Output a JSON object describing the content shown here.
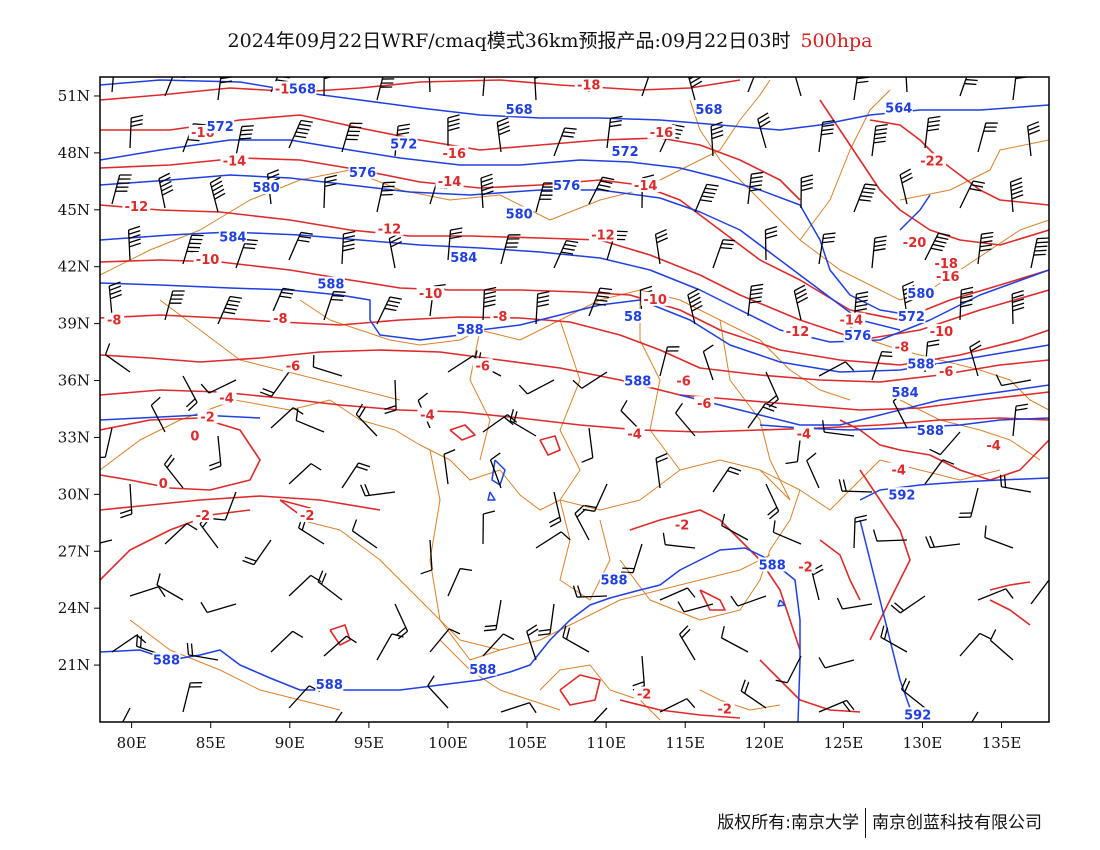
{
  "title": {
    "main": "2024年09月22日WRF/cmaq模式36km预报产品:09月22日03时",
    "level": "500hpa"
  },
  "colors": {
    "height_contour": "#1f3fe0",
    "temperature_contour": "#dd2a2a",
    "border": "#d9822b",
    "wind_barb": "#000000"
  },
  "axes": {
    "lon_ticks": [
      "80E",
      "85E",
      "90E",
      "95E",
      "100E",
      "105E",
      "110E",
      "115E",
      "120E",
      "125E",
      "130E",
      "135E"
    ],
    "lat_ticks": [
      "51N",
      "48N",
      "45N",
      "42N",
      "39N",
      "36N",
      "33N",
      "30N",
      "27N",
      "24N",
      "21N"
    ]
  },
  "chart_data": {
    "type": "contour-map",
    "xlim": [
      78,
      138
    ],
    "ylim": [
      18,
      52
    ],
    "height_labels": [
      {
        "text": "568",
        "lon": 90.8,
        "lat": 51.3
      },
      {
        "text": "568",
        "lon": 104.5,
        "lat": 50.2
      },
      {
        "text": "568",
        "lon": 116.5,
        "lat": 50.2
      },
      {
        "text": "564",
        "lon": 128.5,
        "lat": 50.3
      },
      {
        "text": "572",
        "lon": 85.6,
        "lat": 49.3
      },
      {
        "text": "572",
        "lon": 97.2,
        "lat": 48.4
      },
      {
        "text": "572",
        "lon": 111.2,
        "lat": 48.0
      },
      {
        "text": "576",
        "lon": 94.6,
        "lat": 46.9
      },
      {
        "text": "576",
        "lon": 107.5,
        "lat": 46.2
      },
      {
        "text": "580",
        "lon": 88.5,
        "lat": 46.1
      },
      {
        "text": "580",
        "lon": 104.5,
        "lat": 44.7
      },
      {
        "text": "584",
        "lon": 86.4,
        "lat": 43.5
      },
      {
        "text": "584",
        "lon": 101.0,
        "lat": 42.4
      },
      {
        "text": "588",
        "lon": 92.6,
        "lat": 41.0
      },
      {
        "text": "588",
        "lon": 101.4,
        "lat": 38.6
      },
      {
        "text": "58",
        "lon": 111.7,
        "lat": 39.3
      },
      {
        "text": "588",
        "lon": 112.0,
        "lat": 35.9
      },
      {
        "text": "580",
        "lon": 129.9,
        "lat": 40.5
      },
      {
        "text": "572",
        "lon": 129.3,
        "lat": 39.3
      },
      {
        "text": "576",
        "lon": 125.9,
        "lat": 38.3
      },
      {
        "text": "588",
        "lon": 129.9,
        "lat": 36.8
      },
      {
        "text": "584",
        "lon": 128.9,
        "lat": 35.3
      },
      {
        "text": "588",
        "lon": 130.5,
        "lat": 33.3
      },
      {
        "text": "592",
        "lon": 128.7,
        "lat": 29.9
      },
      {
        "text": "588",
        "lon": 110.5,
        "lat": 25.4
      },
      {
        "text": "588",
        "lon": 120.5,
        "lat": 26.2
      },
      {
        "text": "588",
        "lon": 82.2,
        "lat": 21.2
      },
      {
        "text": "588",
        "lon": 92.5,
        "lat": 19.9
      },
      {
        "text": "588",
        "lon": 102.2,
        "lat": 20.7
      },
      {
        "text": "592",
        "lon": 129.7,
        "lat": 18.3
      }
    ],
    "temperature_labels": [
      {
        "text": "-18",
        "lon": 89.8,
        "lat": 51.3
      },
      {
        "text": "-18",
        "lon": 108.9,
        "lat": 51.5
      },
      {
        "text": "-16",
        "lon": 84.5,
        "lat": 49.0
      },
      {
        "text": "-16",
        "lon": 113.5,
        "lat": 49.0
      },
      {
        "text": "-16",
        "lon": 100.4,
        "lat": 47.9
      },
      {
        "text": "-14",
        "lon": 86.5,
        "lat": 47.5
      },
      {
        "text": "-14",
        "lon": 100.1,
        "lat": 46.4
      },
      {
        "text": "-14",
        "lon": 112.5,
        "lat": 46.2
      },
      {
        "text": "-12",
        "lon": 80.3,
        "lat": 45.1
      },
      {
        "text": "-12",
        "lon": 96.3,
        "lat": 43.9
      },
      {
        "text": "-12",
        "lon": 109.8,
        "lat": 43.6
      },
      {
        "text": "-10",
        "lon": 84.8,
        "lat": 42.3
      },
      {
        "text": "-10",
        "lon": 98.9,
        "lat": 40.5
      },
      {
        "text": "-10",
        "lon": 113.1,
        "lat": 40.2
      },
      {
        "text": "-8",
        "lon": 78.9,
        "lat": 39.1
      },
      {
        "text": "-8",
        "lon": 89.4,
        "lat": 39.2
      },
      {
        "text": "-8",
        "lon": 103.3,
        "lat": 39.3
      },
      {
        "text": "-8",
        "lon": 128.7,
        "lat": 37.7
      },
      {
        "text": "-6",
        "lon": 90.2,
        "lat": 36.7
      },
      {
        "text": "-6",
        "lon": 102.2,
        "lat": 36.7
      },
      {
        "text": "-6",
        "lon": 114.9,
        "lat": 35.9
      },
      {
        "text": "-6",
        "lon": 116.2,
        "lat": 34.7
      },
      {
        "text": "-6",
        "lon": 131.5,
        "lat": 36.4
      },
      {
        "text": "-4",
        "lon": 86.0,
        "lat": 35.0
      },
      {
        "text": "-4",
        "lon": 98.7,
        "lat": 34.1
      },
      {
        "text": "-4",
        "lon": 111.8,
        "lat": 33.1
      },
      {
        "text": "-4",
        "lon": 122.5,
        "lat": 33.1
      },
      {
        "text": "-4",
        "lon": 134.5,
        "lat": 32.5
      },
      {
        "text": "-4",
        "lon": 128.5,
        "lat": 31.2
      },
      {
        "text": "-2",
        "lon": 84.8,
        "lat": 34.0
      },
      {
        "text": "-2",
        "lon": 84.5,
        "lat": 28.8
      },
      {
        "text": "-2",
        "lon": 91.1,
        "lat": 28.8
      },
      {
        "text": "-2",
        "lon": 114.8,
        "lat": 28.3
      },
      {
        "text": "-2",
        "lon": 122.6,
        "lat": 26.1
      },
      {
        "text": "-2",
        "lon": 112.4,
        "lat": 19.4
      },
      {
        "text": "-2",
        "lon": 117.5,
        "lat": 18.6
      },
      {
        "text": "0",
        "lon": 84.0,
        "lat": 33.0
      },
      {
        "text": "0",
        "lon": 82.0,
        "lat": 30.5
      },
      {
        "text": "-22",
        "lon": 130.6,
        "lat": 47.5
      },
      {
        "text": "-20",
        "lon": 129.5,
        "lat": 43.2
      },
      {
        "text": "-18",
        "lon": 131.5,
        "lat": 42.1
      },
      {
        "text": "-16",
        "lon": 131.6,
        "lat": 41.4
      },
      {
        "text": "-14",
        "lon": 125.5,
        "lat": 39.1
      },
      {
        "text": "-12",
        "lon": 122.1,
        "lat": 38.5
      },
      {
        "text": "-10",
        "lon": 131.2,
        "lat": 38.5
      }
    ]
  },
  "footer": {
    "copyright": "版权所有:南京大学",
    "company": "南京创蓝科技有限公司"
  }
}
